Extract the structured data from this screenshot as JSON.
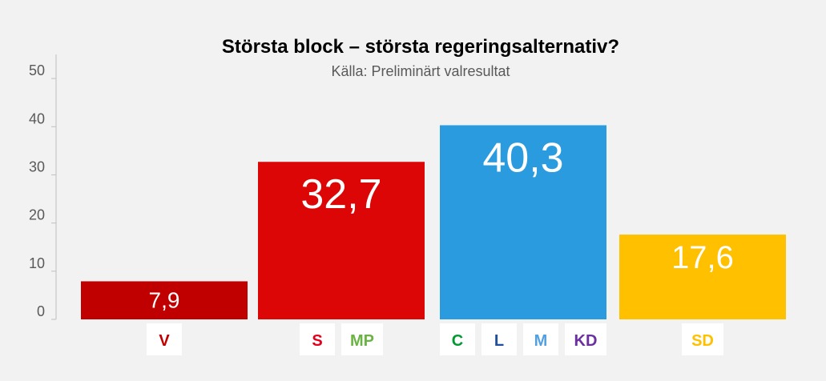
{
  "chart_data": {
    "type": "bar",
    "title": "Största block – största regeringsalternativ?",
    "subtitle": "Källa: Preliminärt valresultat",
    "xlabel": "",
    "ylabel": "",
    "ylim": [
      0,
      55
    ],
    "yticks": [
      0,
      10,
      20,
      30,
      40,
      50
    ],
    "grid": false,
    "legend": "none",
    "categories": [
      "V",
      "S + MP",
      "C + L + M + KD",
      "SD"
    ],
    "values": [
      7.9,
      32.7,
      40.3,
      17.6
    ],
    "value_labels": [
      "7,9",
      "32,7",
      "40,3",
      "17,6"
    ],
    "bar_colors": [
      "#c00000",
      "#dc0606",
      "#2b9bdf",
      "#ffc000"
    ],
    "parties": [
      [
        {
          "name": "V",
          "color": "#c00000"
        }
      ],
      [
        {
          "name": "S",
          "color": "#e2001a"
        },
        {
          "name": "MP",
          "color": "#6ab344"
        }
      ],
      [
        {
          "name": "C",
          "color": "#009933"
        },
        {
          "name": "L",
          "color": "#1f4e9c"
        },
        {
          "name": "M",
          "color": "#52a0e0"
        },
        {
          "name": "KD",
          "color": "#6b2fa0"
        }
      ],
      [
        {
          "name": "SD",
          "color": "#ffc000"
        }
      ]
    ]
  }
}
